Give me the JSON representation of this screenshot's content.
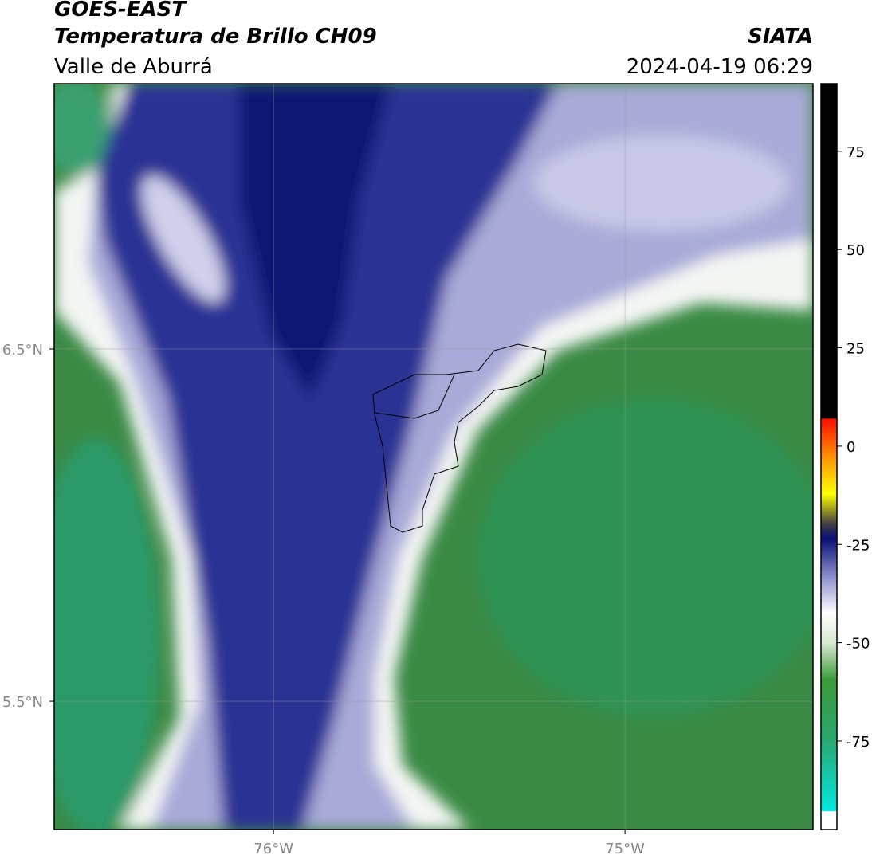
{
  "title": "GOES-EAST",
  "subtitle": "Temperatura de Brillo CH09",
  "region": "Valle de Aburrá",
  "source": "SIATA",
  "datetime": "2024-04-19 06:29",
  "map": {
    "xlim": [
      -76.624,
      -74.465
    ],
    "ylim": [
      5.136,
      7.253
    ],
    "xticks": [
      {
        "value": -76,
        "label": "76°W"
      },
      {
        "value": -75,
        "label": "75°W"
      }
    ],
    "yticks": [
      {
        "value": 6.5,
        "label": "6.5°N"
      },
      {
        "value": 5.5,
        "label": "5.5°N"
      }
    ]
  },
  "colorbar": {
    "lim": [
      -97.5,
      92.2
    ],
    "ticks": [
      75,
      50,
      25,
      0,
      -25,
      -50,
      -75
    ]
  }
}
